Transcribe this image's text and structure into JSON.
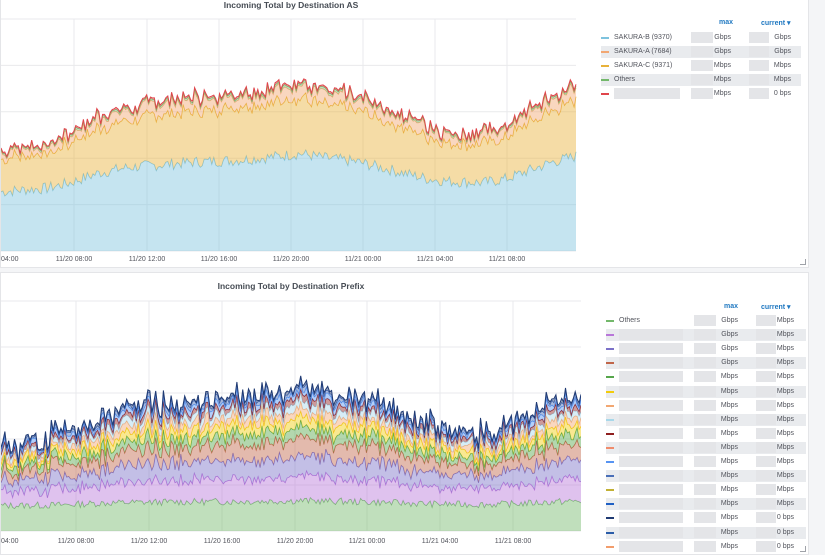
{
  "panels": {
    "as": {
      "title": "Incoming Total by Destination AS",
      "x_ticks": [
        "04:00",
        "11/20 08:00",
        "11/20 12:00",
        "11/20 16:00",
        "11/20 20:00",
        "11/21 00:00",
        "11/21 04:00",
        "11/21 08:00"
      ],
      "legend": {
        "col_max": "max",
        "col_current": "current ▾",
        "rows": [
          {
            "name": "SAKURA-B (9370)",
            "color": "#7ec3de",
            "max": "Gbps",
            "current": "Gbps"
          },
          {
            "name": "SAKURA-A (7684)",
            "color": "#f2a772",
            "max": "Gbps",
            "current": "Gbps"
          },
          {
            "name": "SAKURA-C (9371)",
            "color": "#e8b23a",
            "max": "Mbps",
            "current": "Mbps"
          },
          {
            "name": "Others",
            "color": "#73b86b",
            "max": "Mbps",
            "current": "Mbps"
          },
          {
            "name": "",
            "color": "#e0454b",
            "max": "Mbps",
            "current": "0 bps"
          }
        ]
      }
    },
    "prefix": {
      "title": "Incoming Total by Destination Prefix",
      "x_ticks": [
        "04:00",
        "11/20 08:00",
        "11/20 12:00",
        "11/20 16:00",
        "11/20 20:00",
        "11/21 00:00",
        "11/21 04:00",
        "11/21 08:00"
      ],
      "legend": {
        "col_max": "max",
        "col_current": "current ▾",
        "rows": [
          {
            "name": "Others",
            "color": "#73b86b",
            "max": "Gbps",
            "current": "Mbps"
          },
          {
            "name": "",
            "color": "#b877d9",
            "max": "Gbps",
            "current": "Mbps"
          },
          {
            "name": "",
            "color": "#7b71c8",
            "max": "Gbps",
            "current": "Mbps"
          },
          {
            "name": "",
            "color": "#c0664a",
            "max": "Gbps",
            "current": "Mbps"
          },
          {
            "name": "",
            "color": "#56a64b",
            "max": "Mbps",
            "current": "Mbps"
          },
          {
            "name": "",
            "color": "#f2cc0c",
            "max": "Mbps",
            "current": "Mbps"
          },
          {
            "name": "",
            "color": "#f2a772",
            "max": "Mbps",
            "current": "Mbps"
          },
          {
            "name": "",
            "color": "#a8d8ea",
            "max": "Mbps",
            "current": "Mbps"
          },
          {
            "name": "",
            "color": "#8f1f1f",
            "max": "Mbps",
            "current": "Mbps"
          },
          {
            "name": "",
            "color": "#f08c6c",
            "max": "Mbps",
            "current": "Mbps"
          },
          {
            "name": "",
            "color": "#5794f2",
            "max": "Mbps",
            "current": "Mbps"
          },
          {
            "name": "",
            "color": "#4a6fb8",
            "max": "Mbps",
            "current": "Mbps"
          },
          {
            "name": "",
            "color": "#c2b135",
            "max": "Mbps",
            "current": "Mbps"
          },
          {
            "name": "",
            "color": "#1f60c4",
            "max": "Mbps",
            "current": "Mbps"
          },
          {
            "name": "",
            "color": "#1f3a73",
            "max": "Mbps",
            "current": "0 bps"
          },
          {
            "name": "",
            "color": "#2a5ca8",
            "max": "Mbps",
            "current": "0 bps"
          },
          {
            "name": "",
            "color": "#f29d6c",
            "max": "Mbps",
            "current": "0 bps"
          }
        ]
      }
    }
  }
}
